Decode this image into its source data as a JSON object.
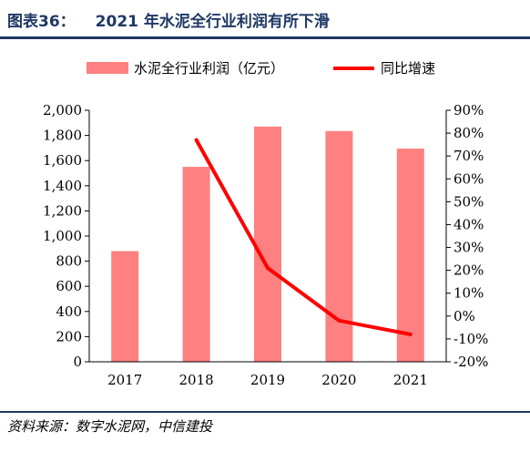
{
  "figure": {
    "label": "图表36：",
    "title": "2021 年水泥全行业利润有所下滑",
    "source": "资料来源：数字水泥网，中信建投"
  },
  "colors": {
    "bar": "#ff8080",
    "line": "#ff0000",
    "rule": "#1f3864"
  },
  "chart_data": {
    "type": "bar",
    "categories": [
      "2017",
      "2018",
      "2019",
      "2020",
      "2021"
    ],
    "series": [
      {
        "name": "水泥全行业利润（亿元）",
        "type": "bar",
        "axis": "left",
        "values": [
          880,
          1550,
          1870,
          1835,
          1695
        ]
      },
      {
        "name": "同比增速",
        "type": "line",
        "axis": "right",
        "values": [
          null,
          77,
          21,
          -2,
          -8
        ]
      }
    ],
    "y_left": {
      "min": 0,
      "max": 2000,
      "step": 200,
      "tick_labels": [
        "0",
        "200",
        "400",
        "600",
        "800",
        "1,000",
        "1,200",
        "1,400",
        "1,600",
        "1,800",
        "2,000"
      ]
    },
    "y_right": {
      "min": -20,
      "max": 90,
      "step": 10,
      "tick_labels": [
        "-20%",
        "-10%",
        "0%",
        "10%",
        "20%",
        "30%",
        "40%",
        "50%",
        "60%",
        "70%",
        "80%",
        "90%"
      ]
    },
    "grid": false,
    "legend_position": "top"
  }
}
